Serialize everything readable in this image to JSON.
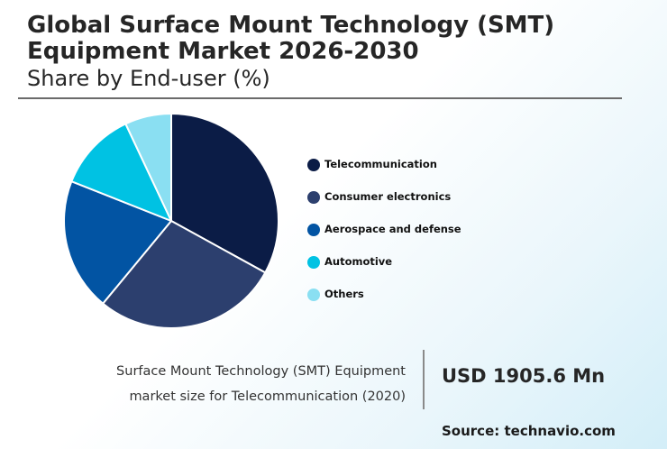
{
  "title": "Global Surface Mount Technology (SMT) Equipment Market 2026-2030",
  "subtitle": "Share by End-user (%)",
  "caption": {
    "line1": "Surface Mount Technology (SMT) Equipment",
    "line2": "market size for Telecommunication (2020)"
  },
  "highlight_value": "USD 1905.6 Mn",
  "source": "Source: technavio.com",
  "chart_data": {
    "type": "pie",
    "title": "Global Surface Mount Technology (SMT) Equipment Market 2026-2030",
    "subtitle": "Share by End-user (%)",
    "legend_position": "right",
    "categories": [
      "Telecommunication",
      "Consumer electronics",
      "Aerospace and defense",
      "Automotive",
      "Others"
    ],
    "values": [
      33,
      28,
      20,
      12,
      7
    ],
    "colors": [
      "#0b1c46",
      "#2c3f6e",
      "#0254a3",
      "#00c2e3",
      "#8adff2"
    ],
    "slice_border_color": "#ffffff"
  }
}
